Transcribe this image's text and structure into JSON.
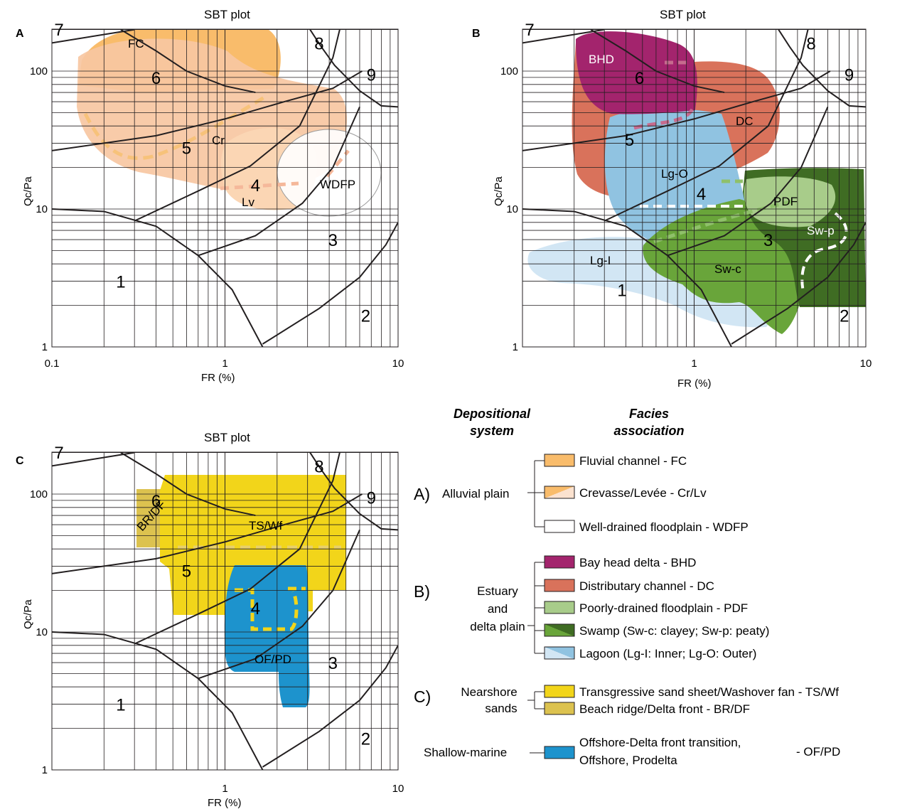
{
  "colors": {
    "FC": "#f9bc6b",
    "Cr": "#f7c7a2",
    "Lv": "#fbd6b4",
    "WDFP": "#ffffff",
    "BHD": "#a3246d",
    "DC": "#d9725b",
    "PDF": "#a8cc8a",
    "Sw_c": "#69a53a",
    "Sw_p": "#3f6c23",
    "Lg_I": "#d2e6f4",
    "Lg_O": "#90c3e1",
    "TS_Wf": "#f2d51a",
    "BR_DF": "#dcc24f",
    "OF_PD": "#1d93cd"
  },
  "chart_data": [
    {
      "panel": "A",
      "type": "scatter",
      "title": "SBT plot",
      "xlabel": "FR (%)",
      "ylabel": "Qc/Pa",
      "xscale": "log",
      "yscale": "log",
      "xlim": [
        0.1,
        10
      ],
      "ylim": [
        1,
        200
      ],
      "x_tick_labels": [
        "0.1",
        "1",
        "10"
      ],
      "y_tick_labels": [
        "1",
        "10",
        "100"
      ],
      "zone_labels": [
        "1",
        "2",
        "3",
        "4",
        "5",
        "6",
        "7",
        "8",
        "9"
      ],
      "series": [
        {
          "name": "FC",
          "x_range": [
            0.13,
            0.5
          ],
          "y_range": [
            60,
            200
          ]
        },
        {
          "name": "Cr",
          "x_range": [
            0.11,
            4.3
          ],
          "y_range": [
            14,
            120
          ]
        },
        {
          "name": "Lv",
          "x_range": [
            1.1,
            2.6
          ],
          "y_range": [
            8,
            30
          ]
        },
        {
          "name": "WDFP",
          "x_range": [
            2.5,
            8.4
          ],
          "y_range": [
            9,
            30
          ]
        }
      ]
    },
    {
      "panel": "B",
      "type": "scatter",
      "title": "SBT plot",
      "xlabel": "FR (%)",
      "ylabel": "Qc/Pa",
      "xscale": "log",
      "yscale": "log",
      "xlim": [
        0.1,
        10
      ],
      "ylim": [
        1,
        200
      ],
      "x_tick_labels": [
        "1",
        "10"
      ],
      "y_tick_labels": [
        "1",
        "10",
        "100"
      ],
      "zone_labels": [
        "1",
        "2",
        "3",
        "4",
        "5",
        "6",
        "7",
        "8",
        "9"
      ],
      "series": [
        {
          "name": "BHD",
          "x_range": [
            0.22,
            1.0
          ],
          "y_range": [
            40,
            200
          ]
        },
        {
          "name": "DC",
          "x_range": [
            0.2,
            3.8
          ],
          "y_range": [
            17,
            120
          ]
        },
        {
          "name": "Lg-O",
          "x_range": [
            0.32,
            2.1
          ],
          "y_range": [
            5,
            50
          ]
        },
        {
          "name": "PDF",
          "x_range": [
            2.0,
            10
          ],
          "y_range": [
            7,
            19
          ]
        },
        {
          "name": "Sw-p",
          "x_range": [
            2.3,
            10
          ],
          "y_range": [
            2,
            19
          ]
        },
        {
          "name": "Sw-c",
          "x_range": [
            0.6,
            4.0
          ],
          "y_range": [
            1.5,
            12
          ]
        },
        {
          "name": "Lg-I",
          "x_range": [
            0.1,
            3.8
          ],
          "y_range": [
            2,
            6.5
          ]
        }
      ]
    },
    {
      "panel": "C",
      "type": "scatter",
      "title": "SBT plot",
      "xlabel": "FR (%)",
      "ylabel": "Qc/Pa",
      "xscale": "log",
      "yscale": "log",
      "xlim": [
        0.1,
        10
      ],
      "ylim": [
        1,
        200
      ],
      "x_tick_labels": [
        "1",
        "10"
      ],
      "y_tick_labels": [
        "1",
        "10",
        "100"
      ],
      "zone_labels": [
        "1",
        "2",
        "3",
        "4",
        "5",
        "6",
        "7",
        "8",
        "9"
      ],
      "series": [
        {
          "name": "TS/Wf",
          "x_range": [
            0.5,
            5.0
          ],
          "y_range": [
            13,
            135
          ]
        },
        {
          "name": "BR/DF",
          "x_range": [
            0.28,
            0.6
          ],
          "y_range": [
            40,
            110
          ]
        },
        {
          "name": "OF/PD",
          "x_range": [
            1.0,
            3.0
          ],
          "y_range": [
            3,
            30
          ]
        }
      ]
    }
  ],
  "legend": {
    "header_system": [
      "Depositional",
      "system"
    ],
    "header_facies": [
      "Facies",
      "association"
    ],
    "groups": [
      {
        "letter": "A)",
        "system": [
          "Alluvial plain"
        ],
        "items": [
          "Fluvial channel - FC",
          "Crevasse/Levée - Cr/Lv",
          "Well-drained floodplain - WDFP"
        ]
      },
      {
        "letter": "B)",
        "system": [
          "Estuary",
          "and",
          "delta plain"
        ],
        "items": [
          "Bay head delta - BHD",
          "Distributary channel - DC",
          "Poorly-drained floodplain - PDF",
          "Swamp (Sw-c: clayey; Sw-p: peaty)",
          "Lagoon (Lg-I: Inner; Lg-O: Outer)"
        ]
      },
      {
        "letter": "C)",
        "system": [
          "Nearshore",
          "sands"
        ],
        "items": [
          "Transgressive sand sheet/Washover fan - TS/Wf",
          "Beach ridge/Delta front - BR/DF"
        ]
      },
      {
        "letter": "",
        "system": [
          "Shallow-marine"
        ],
        "items": [
          "Offshore-Delta front transition,",
          "Offshore, Prodelta",
          "- OF/PD"
        ]
      }
    ]
  }
}
